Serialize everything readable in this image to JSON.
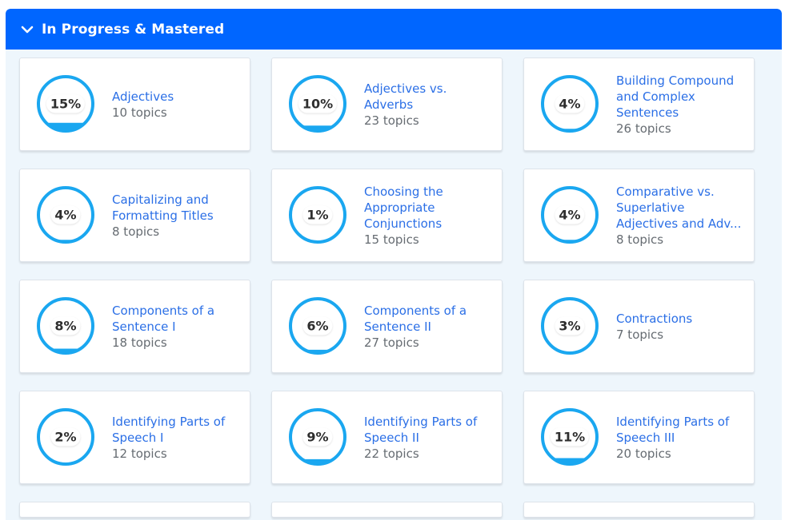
{
  "section": {
    "title": "In Progress & Mastered",
    "icon": "chevron-down-icon",
    "color": "#0066ff"
  },
  "ring_color": "#1aa7f0",
  "cards": [
    {
      "name": "Adjectives",
      "topics": "10 topics",
      "percent_label": "15%",
      "percent": 15
    },
    {
      "name": "Adjectives vs. Adverbs",
      "topics": "23 topics",
      "percent_label": "10%",
      "percent": 10
    },
    {
      "name": "Building Compound and Complex Sentences",
      "topics": "26 topics",
      "percent_label": "4%",
      "percent": 4
    },
    {
      "name": "Capitalizing and Formatting Titles",
      "topics": "8 topics",
      "percent_label": "4%",
      "percent": 4
    },
    {
      "name": "Choosing the Appropriate Conjunctions",
      "topics": "15 topics",
      "percent_label": "1%",
      "percent": 1
    },
    {
      "name": "Comparative vs. Superlative Adjectives and Adv...",
      "topics": "8 topics",
      "percent_label": "4%",
      "percent": 4
    },
    {
      "name": "Components of a Sentence I",
      "topics": "18 topics",
      "percent_label": "8%",
      "percent": 8
    },
    {
      "name": "Components of a Sentence II",
      "topics": "27 topics",
      "percent_label": "6%",
      "percent": 6
    },
    {
      "name": "Contractions",
      "topics": "7 topics",
      "percent_label": "3%",
      "percent": 3
    },
    {
      "name": "Identifying Parts of Speech I",
      "topics": "12 topics",
      "percent_label": "2%",
      "percent": 2
    },
    {
      "name": "Identifying Parts of Speech II",
      "topics": "22 topics",
      "percent_label": "9%",
      "percent": 9
    },
    {
      "name": "Identifying Parts of Speech III",
      "topics": "20 topics",
      "percent_label": "11%",
      "percent": 11
    }
  ]
}
